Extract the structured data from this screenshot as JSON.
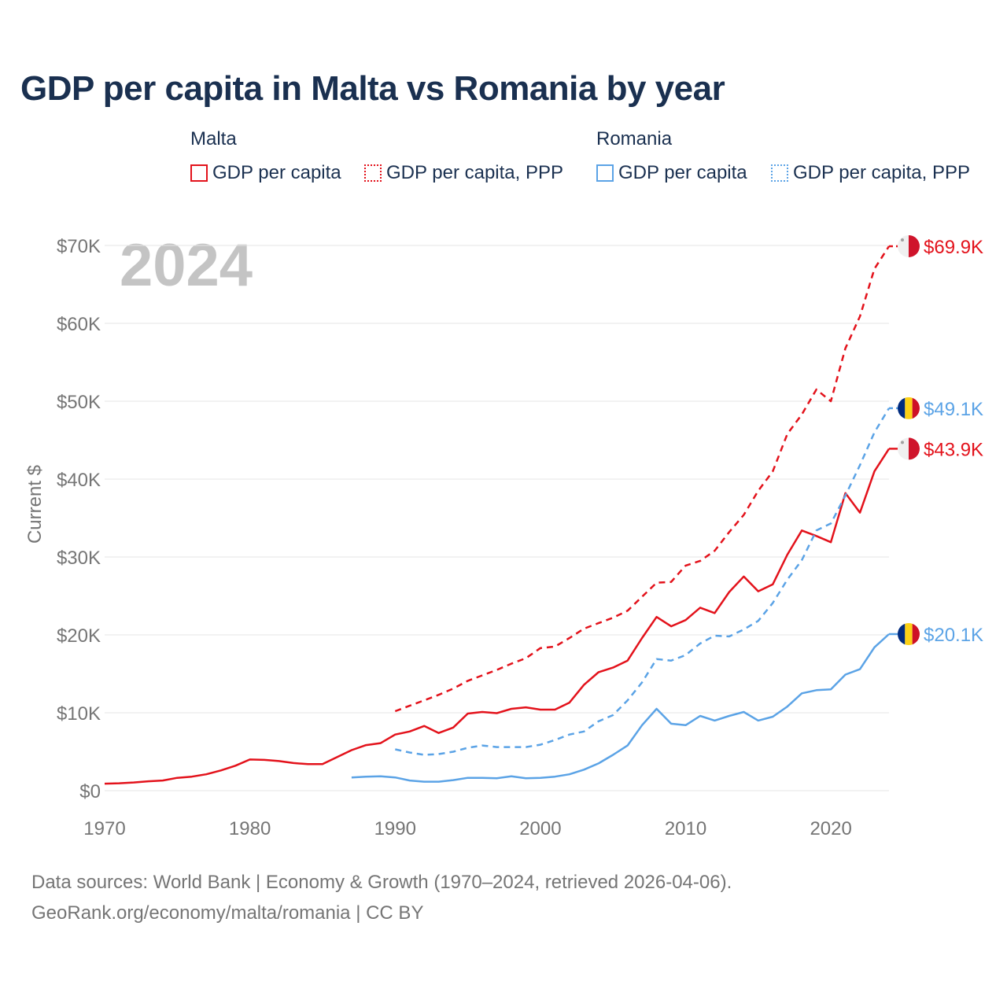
{
  "title": "GDP per capita in Malta vs Romania by year",
  "legend": {
    "groups": [
      {
        "name": "Malta",
        "color": "#e3121b",
        "items": [
          {
            "label": "GDP per capita",
            "style": "solid"
          },
          {
            "label": "GDP per capita, PPP",
            "style": "dotted"
          }
        ]
      },
      {
        "name": "Romania",
        "color": "#5ba3e6",
        "items": [
          {
            "label": "GDP per capita",
            "style": "solid"
          },
          {
            "label": "GDP per capita, PPP",
            "style": "dotted"
          }
        ]
      }
    ]
  },
  "year_watermark": "2024",
  "footer": {
    "line1": "Data sources: World Bank | Economy & Growth (1970–2024, retrieved 2026-04-06).",
    "line2": "GeoRank.org/economy/malta/romania | CC BY"
  },
  "chart_data": {
    "type": "line",
    "title": "GDP per capita in Malta vs Romania by year",
    "xlabel": "",
    "ylabel": "Current $",
    "xlim": [
      1970,
      2024
    ],
    "ylim": [
      0,
      70000
    ],
    "x_ticks": [
      1970,
      1980,
      1990,
      2000,
      2010,
      2020
    ],
    "x_tick_labels": [
      "1970",
      "1980",
      "1990",
      "2000",
      "2010",
      "2020"
    ],
    "y_ticks": [
      0,
      10000,
      20000,
      30000,
      40000,
      50000,
      60000,
      70000
    ],
    "y_tick_labels": [
      "$0",
      "$10K",
      "$20K",
      "$30K",
      "$40K",
      "$50K",
      "$60K",
      "$70K"
    ],
    "grid": true,
    "series": [
      {
        "name": "Malta GDP per capita",
        "country": "Malta",
        "dash": "solid",
        "color": "#e3121b",
        "end_label": "$43.9K",
        "x": [
          1970,
          1971,
          1972,
          1973,
          1974,
          1975,
          1976,
          1977,
          1978,
          1979,
          1980,
          1981,
          1982,
          1983,
          1984,
          1985,
          1986,
          1987,
          1988,
          1989,
          1990,
          1991,
          1992,
          1993,
          1994,
          1995,
          1996,
          1997,
          1998,
          1999,
          2000,
          2001,
          2002,
          2003,
          2004,
          2005,
          2006,
          2007,
          2008,
          2009,
          2010,
          2011,
          2012,
          2013,
          2014,
          2015,
          2016,
          2017,
          2018,
          2019,
          2020,
          2021,
          2022,
          2023,
          2024
        ],
        "values": [
          900,
          950,
          1050,
          1200,
          1300,
          1650,
          1800,
          2100,
          2600,
          3200,
          4000,
          3950,
          3800,
          3550,
          3400,
          3400,
          4300,
          5200,
          5850,
          6100,
          7200,
          7600,
          8300,
          7400,
          8100,
          9900,
          10100,
          9950,
          10500,
          10700,
          10400,
          10400,
          11300,
          13600,
          15200,
          15800,
          16700,
          19600,
          22300,
          21100,
          21900,
          23500,
          22800,
          25500,
          27500,
          25600,
          26500,
          30300,
          33400,
          32700,
          31900,
          38200,
          35700,
          41000,
          43900
        ]
      },
      {
        "name": "Malta GDP per capita, PPP",
        "country": "Malta",
        "dash": "dashed",
        "color": "#e3121b",
        "end_label": "$69.9K",
        "x": [
          1990,
          1991,
          1992,
          1993,
          1994,
          1995,
          1996,
          1997,
          1998,
          1999,
          2000,
          2001,
          2002,
          2003,
          2004,
          2005,
          2006,
          2007,
          2008,
          2009,
          2010,
          2011,
          2012,
          2013,
          2014,
          2015,
          2016,
          2017,
          2018,
          2019,
          2020,
          2021,
          2022,
          2023,
          2024
        ],
        "values": [
          10200,
          10900,
          11600,
          12300,
          13100,
          14100,
          14800,
          15500,
          16300,
          17000,
          18300,
          18500,
          19600,
          20800,
          21500,
          22200,
          23100,
          24900,
          26700,
          26800,
          28900,
          29500,
          30800,
          33200,
          35400,
          38500,
          41000,
          45800,
          48300,
          51500,
          50000,
          56800,
          60900,
          67000,
          69900
        ]
      },
      {
        "name": "Romania GDP per capita",
        "country": "Romania",
        "dash": "solid",
        "color": "#5ba3e6",
        "end_label": "$20.1K",
        "x": [
          1987,
          1988,
          1989,
          1990,
          1991,
          1992,
          1993,
          1994,
          1995,
          1996,
          1997,
          1998,
          1999,
          2000,
          2001,
          2002,
          2003,
          2004,
          2005,
          2006,
          2007,
          2008,
          2009,
          2010,
          2011,
          2012,
          2013,
          2014,
          2015,
          2016,
          2017,
          2018,
          2019,
          2020,
          2021,
          2022,
          2023,
          2024
        ],
        "values": [
          1700,
          1800,
          1850,
          1700,
          1300,
          1150,
          1150,
          1350,
          1650,
          1650,
          1600,
          1850,
          1600,
          1650,
          1800,
          2100,
          2700,
          3500,
          4600,
          5800,
          8400,
          10500,
          8600,
          8400,
          9600,
          9000,
          9600,
          10100,
          9000,
          9500,
          10800,
          12500,
          12900,
          13000,
          14900,
          15600,
          18400,
          20100
        ]
      },
      {
        "name": "Romania GDP per capita, PPP",
        "country": "Romania",
        "dash": "dashed",
        "color": "#5ba3e6",
        "end_label": "$49.1K",
        "x": [
          1990,
          1991,
          1992,
          1993,
          1994,
          1995,
          1996,
          1997,
          1998,
          1999,
          2000,
          2001,
          2002,
          2003,
          2004,
          2005,
          2006,
          2007,
          2008,
          2009,
          2010,
          2011,
          2012,
          2013,
          2014,
          2015,
          2016,
          2017,
          2018,
          2019,
          2020,
          2021,
          2022,
          2023,
          2024
        ],
        "values": [
          5300,
          4900,
          4600,
          4700,
          5000,
          5500,
          5800,
          5600,
          5600,
          5600,
          5900,
          6500,
          7200,
          7600,
          8900,
          9700,
          11600,
          13900,
          16900,
          16700,
          17400,
          18900,
          19900,
          19800,
          20700,
          21800,
          24100,
          27100,
          29600,
          33400,
          34300,
          37900,
          41800,
          46000,
          49100
        ]
      }
    ]
  }
}
